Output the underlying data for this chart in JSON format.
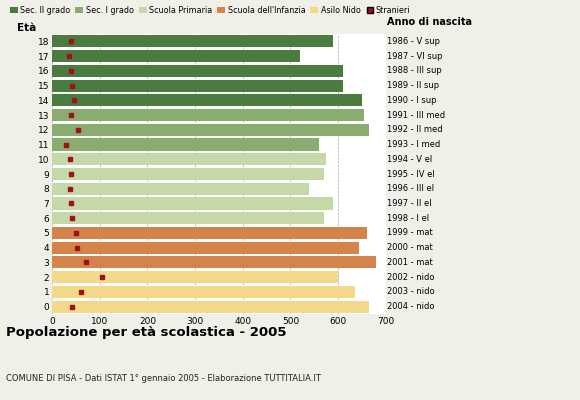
{
  "ages": [
    18,
    17,
    16,
    15,
    14,
    13,
    12,
    11,
    10,
    9,
    8,
    7,
    6,
    5,
    4,
    3,
    2,
    1,
    0
  ],
  "bar_values": [
    590,
    520,
    610,
    610,
    650,
    655,
    665,
    560,
    575,
    570,
    540,
    590,
    570,
    660,
    645,
    680,
    600,
    635,
    665
  ],
  "stranieri": [
    40,
    35,
    40,
    42,
    45,
    40,
    55,
    30,
    38,
    40,
    38,
    40,
    42,
    50,
    52,
    70,
    105,
    60,
    42
  ],
  "right_labels": [
    "1986 - V sup",
    "1987 - VI sup",
    "1988 - III sup",
    "1989 - II sup",
    "1990 - I sup",
    "1991 - III med",
    "1992 - II med",
    "1993 - I med",
    "1994 - V el",
    "1995 - IV el",
    "1996 - III el",
    "1997 - II el",
    "1998 - I el",
    "1999 - mat",
    "2000 - mat",
    "2001 - mat",
    "2002 - nido",
    "2003 - nido",
    "2004 - nido"
  ],
  "colors": {
    "sec2": "#4a7c3f",
    "sec1": "#8aac6e",
    "primaria": "#c5d9a8",
    "infanzia": "#d4834a",
    "nido": "#f5d98b",
    "stranieri": "#a01020"
  },
  "legend_labels": [
    "Sec. II grado",
    "Sec. I grado",
    "Scuola Primaria",
    "Scuola dell'Infanzia",
    "Asilo Nido",
    "Stranieri"
  ],
  "title": "Popolazione per età scolastica - 2005",
  "subtitle": "COMUNE DI PISA - Dati ISTAT 1° gennaio 2005 - Elaborazione TUTTITALIA.IT",
  "xlabel_eta": "Età",
  "xlabel_anno": "Anno di nascita",
  "xlim": [
    0,
    700
  ],
  "xticks": [
    0,
    100,
    200,
    300,
    400,
    500,
    600,
    700
  ],
  "bar_height": 0.82,
  "background_color": "#f0f0e8",
  "plot_bg_color": "#ffffff"
}
